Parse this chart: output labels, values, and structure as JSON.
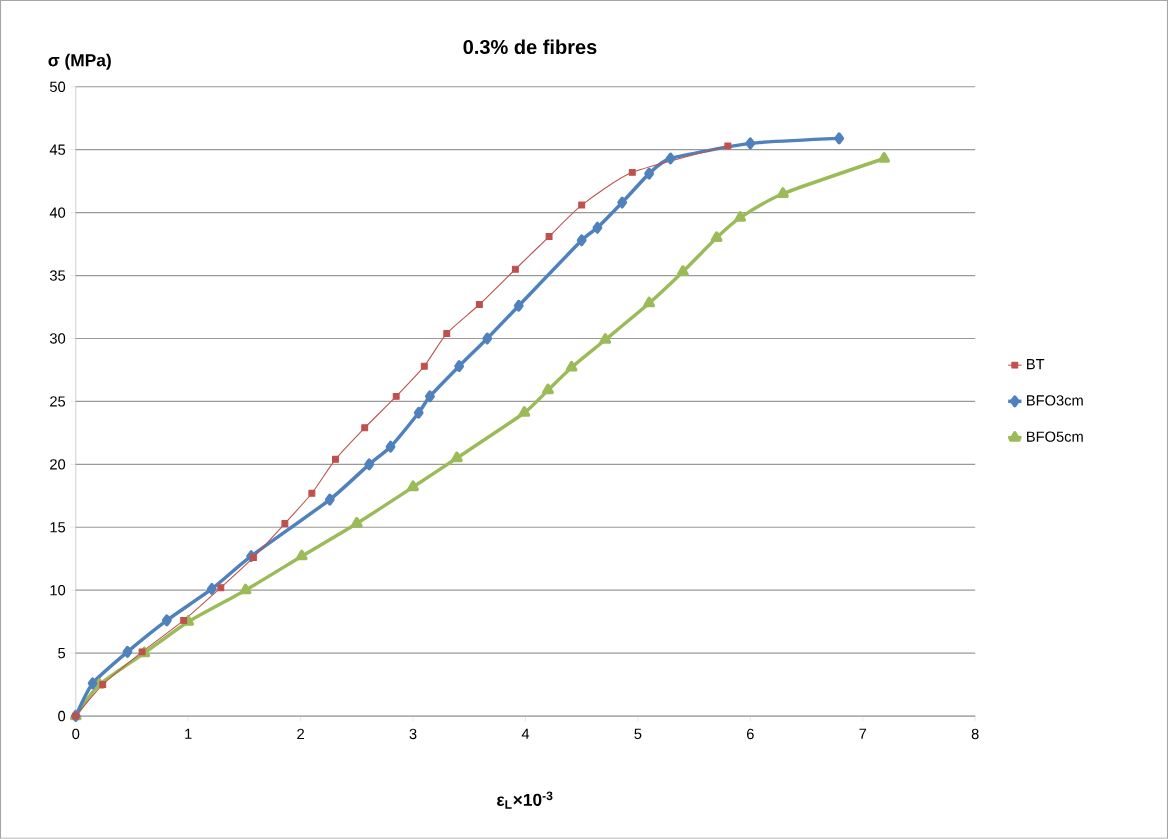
{
  "chart_data": {
    "type": "line",
    "title": "0.3% de fibres",
    "xlabel": "ε$_{L}$×10$^{-3}$",
    "ylabel": "σ (MPa)",
    "xlim": [
      0,
      8
    ],
    "ylim": [
      0,
      50
    ],
    "xticks": [
      0,
      1,
      2,
      3,
      4,
      5,
      6,
      7,
      8
    ],
    "yticks": [
      0,
      5,
      10,
      15,
      20,
      25,
      30,
      35,
      40,
      45,
      50
    ],
    "grid": "y",
    "legend": "right",
    "series": [
      {
        "name": "BT",
        "color": "#c0504d",
        "marker": "square",
        "x": [
          0,
          0.24,
          0.59,
          0.96,
          1.29,
          1.58,
          1.86,
          2.1,
          2.31,
          2.57,
          2.85,
          3.1,
          3.3,
          3.59,
          3.91,
          4.21,
          4.5,
          4.95,
          5.8
        ],
        "values": [
          0,
          2.5,
          5.1,
          7.6,
          10.2,
          12.6,
          15.3,
          17.7,
          20.4,
          22.9,
          25.4,
          27.8,
          30.4,
          32.7,
          35.5,
          38.1,
          40.6,
          43.2,
          45.3
        ]
      },
      {
        "name": "BFO3cm",
        "color": "#4f81bd",
        "marker": "diamond",
        "x": [
          0,
          0.15,
          0.46,
          0.81,
          1.21,
          1.56,
          2.26,
          2.61,
          2.8,
          3.05,
          3.15,
          3.41,
          3.66,
          3.94,
          4.5,
          4.64,
          4.86,
          5.1,
          5.29,
          6.0,
          6.79
        ],
        "values": [
          0,
          2.6,
          5.1,
          7.6,
          10.1,
          12.7,
          17.2,
          20.0,
          21.4,
          24.1,
          25.4,
          27.8,
          30.0,
          32.6,
          37.8,
          38.8,
          40.8,
          43.1,
          44.3,
          45.5,
          45.9
        ]
      },
      {
        "name": "BFO5cm",
        "color": "#9bbb59",
        "marker": "triangle",
        "x": [
          0,
          0.21,
          0.61,
          1.0,
          1.51,
          2.01,
          2.5,
          3.0,
          3.39,
          3.99,
          4.2,
          4.41,
          4.71,
          5.1,
          5.4,
          5.7,
          5.91,
          6.29,
          7.19
        ],
        "values": [
          0,
          2.5,
          5.0,
          7.5,
          10.0,
          12.7,
          15.3,
          18.2,
          20.5,
          24.1,
          25.9,
          27.7,
          29.9,
          32.8,
          35.3,
          38.0,
          39.6,
          41.5,
          44.3
        ]
      }
    ]
  }
}
